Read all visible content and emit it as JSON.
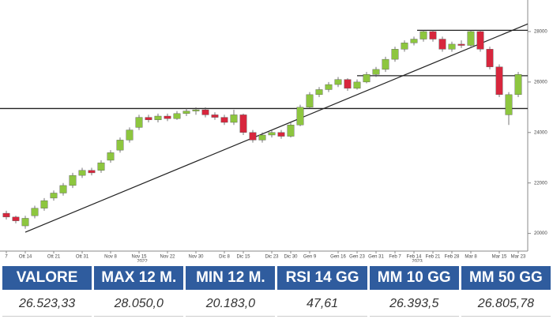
{
  "chart_data": {
    "type": "candlestick",
    "categories": [
      "7",
      null,
      "Ott 14",
      null,
      null,
      "Ott 21",
      null,
      null,
      "Ott 31",
      null,
      null,
      "Nov 8",
      null,
      null,
      "Nov 15",
      null,
      null,
      "Nov 22",
      null,
      null,
      "Nov 30",
      null,
      null,
      "Dic 8",
      null,
      "Dic 15",
      null,
      null,
      "Dic 23",
      null,
      "Dic 30",
      null,
      "Gen 9",
      null,
      null,
      "Gen 16",
      null,
      "Gen 23",
      null,
      "Gen 31",
      null,
      "Feb 7",
      null,
      "Feb 14",
      null,
      "Feb 21",
      null,
      "Feb 28",
      null,
      "Mar 8",
      null,
      null,
      "Mar 15",
      null,
      "Mar 23"
    ],
    "open": [
      20800,
      20650,
      20300,
      20700,
      21000,
      21400,
      21600,
      21900,
      22300,
      22500,
      22500,
      22900,
      23300,
      23700,
      24200,
      24600,
      24500,
      24650,
      24550,
      24750,
      24850,
      24900,
      24700,
      24600,
      24400,
      24700,
      24000,
      23700,
      23900,
      24000,
      23850,
      24300,
      25000,
      25500,
      25700,
      25900,
      26100,
      25750,
      26000,
      26300,
      26500,
      26900,
      27300,
      27550,
      27700,
      28000,
      27700,
      27300,
      27500,
      27450,
      28000,
      27300,
      26600,
      24700,
      25500
    ],
    "high": [
      20900,
      20700,
      20700,
      21100,
      21400,
      21700,
      22000,
      22400,
      22600,
      22600,
      22900,
      23300,
      23800,
      24200,
      24700,
      24700,
      24750,
      24750,
      24850,
      24950,
      25000,
      25000,
      24800,
      24700,
      24900,
      24750,
      24100,
      24000,
      24100,
      24100,
      24400,
      25100,
      25600,
      25800,
      26000,
      26200,
      26150,
      26100,
      26400,
      26600,
      27000,
      27400,
      27650,
      27800,
      28050,
      28050,
      27800,
      27600,
      27650,
      28050,
      28050,
      27400,
      26700,
      25600,
      26400
    ],
    "low": [
      20550,
      20400,
      20183,
      20600,
      20900,
      21300,
      21500,
      21800,
      22200,
      22300,
      22400,
      22800,
      23200,
      23600,
      24100,
      24400,
      24400,
      24450,
      24500,
      24650,
      24700,
      24600,
      24500,
      24300,
      24300,
      23900,
      23600,
      23600,
      23800,
      23750,
      23800,
      24250,
      24950,
      25400,
      25600,
      25800,
      25650,
      25700,
      25950,
      26200,
      26400,
      26800,
      27200,
      27450,
      27600,
      27600,
      27200,
      27200,
      27350,
      27400,
      27200,
      26500,
      25400,
      24300,
      25400
    ],
    "close": [
      20650,
      20500,
      20600,
      21000,
      21300,
      21600,
      21900,
      22300,
      22500,
      22400,
      22800,
      23200,
      23700,
      24100,
      24600,
      24500,
      24650,
      24550,
      24750,
      24850,
      24900,
      24700,
      24600,
      24400,
      24700,
      24000,
      23700,
      23900,
      24000,
      23850,
      24300,
      25000,
      25500,
      25700,
      25900,
      26100,
      25750,
      26000,
      26300,
      26500,
      26900,
      27300,
      27550,
      27700,
      28000,
      27700,
      27300,
      27500,
      27450,
      28000,
      27300,
      26600,
      25500,
      25500,
      26300
    ],
    "up_color": "#8dc63f",
    "down_color": "#d7263d",
    "years": [
      "2022",
      "2023"
    ],
    "hlines": [
      24950,
      26250,
      28050
    ],
    "trendline": [
      20050,
      28300
    ],
    "ylim": [
      19300,
      29250
    ],
    "yticks": [
      20000,
      22000,
      24000,
      26000,
      28000
    ]
  },
  "table": {
    "headers": [
      "VALORE",
      "MAX 12 M.",
      "MIN 12 M.",
      "RSI 14 GG",
      "MM 10 GG",
      "MM 50 GG"
    ],
    "row": [
      "26.523,33",
      "28.050,0",
      "20.183,0",
      "47,61",
      "26.393,5",
      "26.805,78"
    ]
  }
}
